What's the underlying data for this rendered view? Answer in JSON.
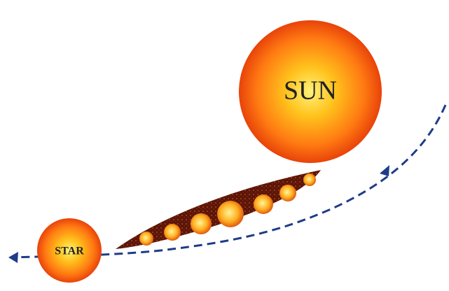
{
  "nodes": [
    {
      "label": "SUN"
    },
    {
      "label": "STAR"
    }
  ]
}
